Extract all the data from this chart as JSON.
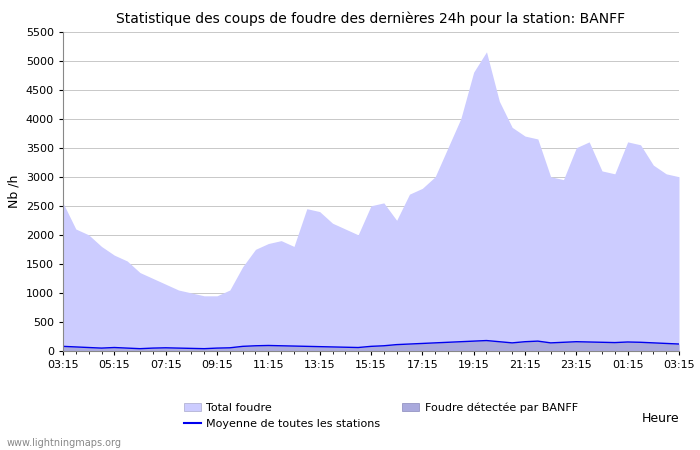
{
  "title": "Statistique des coups de foudre des dernières 24h pour la station: BANFF",
  "xlabel": "Heure",
  "ylabel": "Nb /h",
  "xlim_labels": [
    "03:15",
    "05:15",
    "07:15",
    "09:15",
    "11:15",
    "13:15",
    "15:15",
    "17:15",
    "19:15",
    "21:15",
    "23:15",
    "01:15",
    "03:15"
  ],
  "yticks": [
    0,
    500,
    1000,
    1500,
    2000,
    2500,
    3000,
    3500,
    4000,
    4500,
    5000,
    5500
  ],
  "ylim": [
    0,
    5500
  ],
  "bg_color": "#ffffff",
  "plot_bg_color": "#ffffff",
  "grid_color": "#c8c8c8",
  "fill_color": "#ccccff",
  "banff_fill_color": "#aaaadd",
  "moyenne_color": "#0000ee",
  "watermark": "www.lightningmaps.org",
  "legend": {
    "total_foudre": "Total foudre",
    "banff": "Foudre détectée par BANFF",
    "moyenne": "Moyenne de toutes les stations"
  },
  "total_foudre_values": [
    2550,
    2100,
    2000,
    1800,
    1650,
    1550,
    1350,
    1250,
    1150,
    1050,
    1000,
    950,
    950,
    1050,
    1450,
    1750,
    1850,
    1900,
    1800,
    2450,
    2400,
    2200,
    2100,
    2000,
    2500,
    2550,
    2250,
    2700,
    2800,
    3000,
    3500,
    4000,
    4800,
    5150,
    4300,
    3850,
    3700,
    3650,
    3000,
    2950,
    3500,
    3600,
    3100,
    3050,
    3600,
    3550,
    3200,
    3050,
    3000
  ],
  "banff_values": [
    80,
    70,
    60,
    50,
    60,
    50,
    40,
    50,
    55,
    50,
    45,
    40,
    50,
    55,
    80,
    90,
    95,
    90,
    85,
    80,
    75,
    70,
    65,
    60,
    80,
    90,
    110,
    120,
    130,
    140,
    150,
    160,
    170,
    180,
    160,
    140,
    160,
    170,
    140,
    150,
    160,
    155,
    150,
    145,
    155,
    150,
    140,
    130,
    120
  ],
  "moyenne_values": [
    80,
    70,
    60,
    50,
    60,
    50,
    40,
    50,
    55,
    50,
    45,
    40,
    50,
    55,
    80,
    90,
    95,
    90,
    85,
    80,
    75,
    70,
    65,
    60,
    80,
    90,
    110,
    120,
    130,
    140,
    150,
    160,
    170,
    180,
    160,
    140,
    160,
    170,
    140,
    150,
    160,
    155,
    150,
    145,
    155,
    150,
    140,
    130,
    120
  ],
  "n_points": 49
}
